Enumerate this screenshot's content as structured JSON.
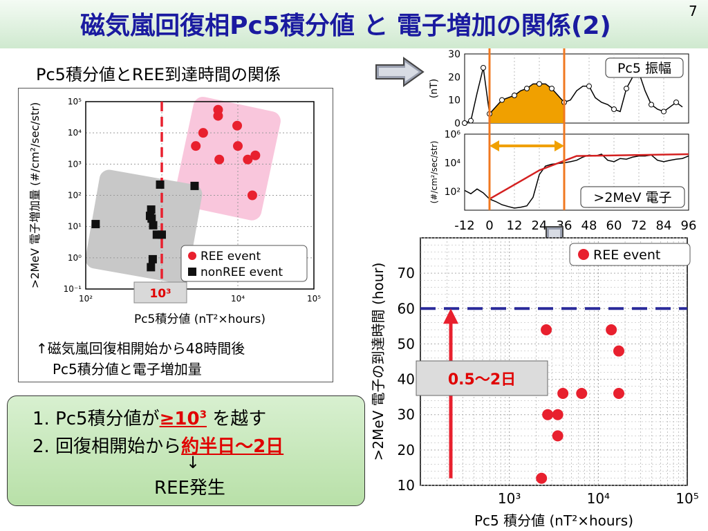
{
  "slide": {
    "title": "磁気嵐回復相Pc5積分値 と 電子増加の関係(2)",
    "number": "7",
    "subheading": "Pc5積分値とREE到達時間の関係"
  },
  "left_caption": {
    "line1": "↑磁気嵐回復相開始から48時間後",
    "line2": "Pc5積分値と電子増加量"
  },
  "summary": {
    "item1_prefix": "1. Pc5積分値が",
    "item1_emph": "≥10",
    "item1_emph_sup": "3",
    "item1_suffix": " を越す",
    "item2_prefix": "2. 回復相開始から",
    "item2_emph": "約半日～2日",
    "arrow": "↓",
    "result": "REE発生"
  },
  "colors": {
    "ree": "#e8202e",
    "nonree": "#111111",
    "pink_region": "#f9c6dc",
    "gray_region": "#c8c8c8",
    "threshold_line": "#e8202e",
    "window_line": "#f07820",
    "fill_orange": "#f0a000",
    "ree_60h_line": "#2a2a9a",
    "arrow_red": "#e8202e",
    "flux_red": "#d42020"
  },
  "chart_data": [
    {
      "type": "scatter",
      "xlabel": "Pc5積分値 (nT²×hours)",
      "ylabel": ">2MeV 電子増加量 (#/cm²/sec/str)",
      "xscale": "log",
      "yscale": "log",
      "xlim": [
        100,
        100000
      ],
      "ylim": [
        0.1,
        100000
      ],
      "xticks": [
        "10²",
        "10³",
        "10⁴",
        "10⁵"
      ],
      "yticks": [
        "10⁻¹",
        "10⁰",
        "10¹",
        "10²",
        "10³",
        "10⁴",
        "10⁵"
      ],
      "threshold_x": 1000,
      "threshold_label": "10³",
      "legend": [
        "REE event",
        "nonREE event"
      ],
      "legend_position": "bottom-right",
      "series": [
        {
          "name": "REE event",
          "marker": "circle",
          "points": [
            [
              5500,
              55000
            ],
            [
              5500,
              35000
            ],
            [
              3500,
              10000
            ],
            [
              9800,
              17000
            ],
            [
              2800,
              3800
            ],
            [
              5700,
              1400
            ],
            [
              10000,
              3800
            ],
            [
              13500,
              1400
            ],
            [
              17000,
              1900
            ],
            [
              15500,
              100
            ]
          ]
        },
        {
          "name": "nonREE event",
          "marker": "square",
          "points": [
            [
              135,
              12
            ],
            [
              950,
              220
            ],
            [
              2700,
              200
            ],
            [
              725,
              35
            ],
            [
              700,
              22
            ],
            [
              735,
              18
            ],
            [
              770,
              11
            ],
            [
              860,
              5.5
            ],
            [
              1000,
              5.5
            ],
            [
              760,
              0.9
            ],
            [
              720,
              0.5
            ]
          ]
        }
      ]
    },
    {
      "type": "line",
      "panel": "Pc5 振幅",
      "ylabel": "(nT)",
      "ylim": [
        0,
        30
      ],
      "yticks": [
        "0",
        "10",
        "20",
        "30"
      ],
      "x_hours": [
        -12,
        -9,
        -6,
        -3,
        0,
        3,
        6,
        9,
        12,
        15,
        18,
        21,
        24,
        27,
        30,
        33,
        36,
        39,
        42,
        45,
        48,
        51,
        54,
        57,
        60,
        63,
        66,
        69,
        72,
        75,
        78,
        81,
        84,
        87,
        90,
        93
      ],
      "values": [
        0,
        1,
        13,
        24,
        4,
        7,
        10,
        11,
        12,
        14,
        15,
        17,
        17,
        17,
        15,
        12,
        9,
        10,
        14,
        16,
        16,
        11,
        9,
        8,
        6,
        5,
        15,
        20,
        22,
        14,
        8,
        6,
        5,
        7,
        9,
        7
      ],
      "markers_at_hours": [
        -12,
        -9,
        -3,
        0,
        6,
        12,
        18,
        24,
        30,
        36,
        48,
        60,
        66,
        72,
        78,
        84,
        90
      ],
      "shaded_interval": [
        0,
        36
      ]
    },
    {
      "type": "line",
      "panel": ">2MeV 電子",
      "ylabel": "(#/cm²/sec/str)",
      "yscale": "log",
      "ylim": [
        5,
        1000000
      ],
      "yticks": [
        "10²",
        "10⁴",
        "10⁶"
      ],
      "x_hours": [
        -12,
        -9,
        -6,
        -3,
        0,
        3,
        6,
        9,
        12,
        15,
        18,
        21,
        24,
        27,
        30,
        33,
        36,
        39,
        42,
        45,
        48,
        51,
        54,
        57,
        60,
        63,
        66,
        69,
        72,
        75,
        78,
        81,
        84,
        87,
        90,
        93,
        96
      ],
      "flux": [
        120,
        70,
        150,
        80,
        30,
        20,
        12,
        9,
        7,
        8,
        10,
        40,
        1500,
        6000,
        8000,
        9000,
        10000,
        12000,
        15000,
        25000,
        35000,
        30000,
        40000,
        15000,
        12000,
        20000,
        18000,
        25000,
        30000,
        30000,
        35000,
        15000,
        12000,
        15000,
        18000,
        20000,
        30000
      ],
      "trend_hours": [
        0,
        24,
        42,
        96
      ],
      "trend_values": [
        30,
        3000,
        30000,
        40000
      ]
    },
    {
      "type": "line-axis",
      "shared_x_ticks": [
        "-12",
        "0",
        "12",
        "24",
        "36",
        "48",
        "60",
        "72",
        "84",
        "96"
      ],
      "arrow_interval": [
        0,
        36
      ]
    },
    {
      "type": "scatter",
      "xlabel": "Pc5 積分値 (nT²×hours)",
      "ylabel": ">2MeV 電子の到達時間 (hour)",
      "xscale": "log",
      "xlim": [
        100,
        100000
      ],
      "ylim": [
        10,
        80
      ],
      "xticks": [
        "10³",
        "10⁴",
        "10⁵"
      ],
      "yticks": [
        "10",
        "20",
        "30",
        "40",
        "50",
        "60",
        "70"
      ],
      "legend": [
        "REE event"
      ],
      "legend_position": "top-right",
      "reference_line_y": 60,
      "arrow_label": "0.5～2日",
      "series": [
        {
          "name": "REE event",
          "points": [
            [
              2300,
              12
            ],
            [
              2600,
              54
            ],
            [
              2700,
              30
            ],
            [
              3500,
              30
            ],
            [
              3500,
              24
            ],
            [
              4000,
              36
            ],
            [
              6500,
              36
            ],
            [
              14000,
              54
            ],
            [
              17000,
              48
            ],
            [
              17000,
              36
            ]
          ]
        }
      ]
    }
  ]
}
